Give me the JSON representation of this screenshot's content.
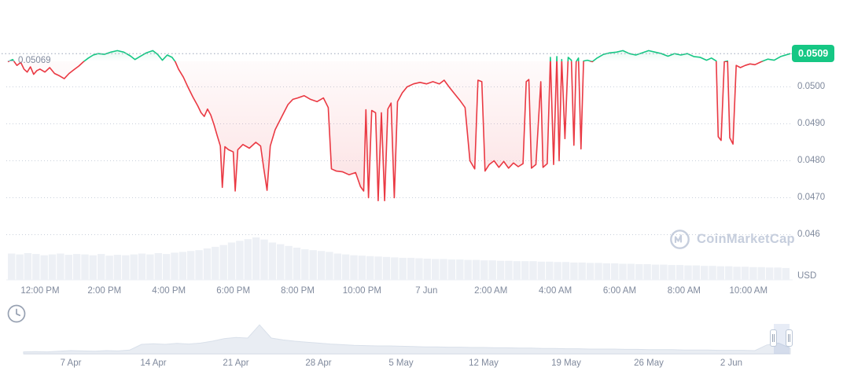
{
  "colors": {
    "green": "#16c784",
    "red": "#ea3943",
    "axis_label": "#808a9d",
    "grid_dot": "#c9d0db",
    "threshold_line": "#9aa5b8",
    "volume_bar": "#edf0f5",
    "nav_fill": "#e9edf3",
    "nav_line": "#d9e0ea",
    "nav_selection": "rgba(94,130,196,0.15)",
    "watermark": "#c6cedd"
  },
  "price_tag": {
    "value": "0.0509"
  },
  "open_price_label": {
    "value": "0.05069"
  },
  "watermark": {
    "text": "CoinMarketCap"
  },
  "chart_data": [
    {
      "type": "line",
      "name": "price-main-chart",
      "title": "",
      "x_unit": "hours from 12:00 PM Jun 6 (12.0 = midnight, tick '7 Jun')",
      "t_range": [
        -1.0,
        23.3
      ],
      "ylim": [
        0.046,
        0.0512
      ],
      "threshold_price": 0.05069,
      "last_price": 0.0509,
      "y_axis_currency": "USD",
      "y_ticks": [
        {
          "price": 0.05,
          "label": "0.0500"
        },
        {
          "price": 0.049,
          "label": "0.0490"
        },
        {
          "price": 0.048,
          "label": "0.0480"
        },
        {
          "price": 0.047,
          "label": "0.0470"
        },
        {
          "price": 0.046,
          "label": "0.046"
        }
      ],
      "x_ticks": [
        {
          "t": 0,
          "label": "12:00 PM"
        },
        {
          "t": 2,
          "label": "2:00 PM"
        },
        {
          "t": 4,
          "label": "4:00 PM"
        },
        {
          "t": 6,
          "label": "6:00 PM"
        },
        {
          "t": 8,
          "label": "8:00 PM"
        },
        {
          "t": 10,
          "label": "10:00 PM"
        },
        {
          "t": 12,
          "label": "7 Jun"
        },
        {
          "t": 14,
          "label": "2:00 AM"
        },
        {
          "t": 16,
          "label": "4:00 AM"
        },
        {
          "t": 18,
          "label": "6:00 AM"
        },
        {
          "t": 20,
          "label": "8:00 AM"
        },
        {
          "t": 22,
          "label": "10:00 AM"
        }
      ],
      "series": [
        {
          "name": "USD price",
          "points": [
            [
              -1.0,
              0.05068
            ],
            [
              -0.85,
              0.05074
            ],
            [
              -0.72,
              0.05058
            ],
            [
              -0.6,
              0.05066
            ],
            [
              -0.5,
              0.05048
            ],
            [
              -0.4,
              0.0504
            ],
            [
              -0.3,
              0.05054
            ],
            [
              -0.2,
              0.05034
            ],
            [
              -0.1,
              0.05044
            ],
            [
              0.0,
              0.05048
            ],
            [
              0.15,
              0.0504
            ],
            [
              0.3,
              0.05052
            ],
            [
              0.45,
              0.05036
            ],
            [
              0.6,
              0.0503
            ],
            [
              0.75,
              0.05022
            ],
            [
              0.9,
              0.05036
            ],
            [
              1.05,
              0.05046
            ],
            [
              1.2,
              0.05056
            ],
            [
              1.35,
              0.05068
            ],
            [
              1.5,
              0.05078
            ],
            [
              1.65,
              0.05086
            ],
            [
              1.8,
              0.0509
            ],
            [
              2.0,
              0.05088
            ],
            [
              2.2,
              0.05094
            ],
            [
              2.4,
              0.05098
            ],
            [
              2.6,
              0.05094
            ],
            [
              2.8,
              0.05084
            ],
            [
              2.95,
              0.05074
            ],
            [
              3.1,
              0.05082
            ],
            [
              3.3,
              0.05092
            ],
            [
              3.5,
              0.05098
            ],
            [
              3.65,
              0.05088
            ],
            [
              3.8,
              0.05072
            ],
            [
              3.95,
              0.05086
            ],
            [
              4.1,
              0.0508
            ],
            [
              4.2,
              0.05068
            ],
            [
              4.3,
              0.05048
            ],
            [
              4.45,
              0.05026
            ],
            [
              4.6,
              0.04998
            ],
            [
              4.75,
              0.04972
            ],
            [
              4.9,
              0.04948
            ],
            [
              5.0,
              0.0493
            ],
            [
              5.1,
              0.0492
            ],
            [
              5.2,
              0.0494
            ],
            [
              5.3,
              0.04924
            ],
            [
              5.4,
              0.04898
            ],
            [
              5.5,
              0.04868
            ],
            [
              5.6,
              0.0484
            ],
            [
              5.66,
              0.04728
            ],
            [
              5.74,
              0.04838
            ],
            [
              5.85,
              0.0483
            ],
            [
              6.0,
              0.04824
            ],
            [
              6.06,
              0.04718
            ],
            [
              6.14,
              0.0483
            ],
            [
              6.3,
              0.04844
            ],
            [
              6.5,
              0.04834
            ],
            [
              6.7,
              0.0485
            ],
            [
              6.85,
              0.0484
            ],
            [
              6.95,
              0.04778
            ],
            [
              7.05,
              0.0472
            ],
            [
              7.15,
              0.0484
            ],
            [
              7.3,
              0.04884
            ],
            [
              7.5,
              0.04918
            ],
            [
              7.7,
              0.04952
            ],
            [
              7.85,
              0.04966
            ],
            [
              8.0,
              0.0497
            ],
            [
              8.2,
              0.04976
            ],
            [
              8.4,
              0.04966
            ],
            [
              8.6,
              0.0496
            ],
            [
              8.8,
              0.0497
            ],
            [
              8.95,
              0.04944
            ],
            [
              9.05,
              0.04778
            ],
            [
              9.2,
              0.04772
            ],
            [
              9.4,
              0.0477
            ],
            [
              9.6,
              0.04762
            ],
            [
              9.8,
              0.04768
            ],
            [
              9.95,
              0.0473
            ],
            [
              10.05,
              0.04718
            ],
            [
              10.12,
              0.04938
            ],
            [
              10.2,
              0.047
            ],
            [
              10.3,
              0.04936
            ],
            [
              10.42,
              0.0493
            ],
            [
              10.5,
              0.04692
            ],
            [
              10.6,
              0.0493
            ],
            [
              10.7,
              0.04692
            ],
            [
              10.8,
              0.0494
            ],
            [
              10.9,
              0.04956
            ],
            [
              11.0,
              0.047
            ],
            [
              11.1,
              0.0496
            ],
            [
              11.25,
              0.04984
            ],
            [
              11.4,
              0.05
            ],
            [
              11.6,
              0.05008
            ],
            [
              11.8,
              0.05012
            ],
            [
              12.0,
              0.05008
            ],
            [
              12.2,
              0.05014
            ],
            [
              12.4,
              0.05008
            ],
            [
              12.55,
              0.05018
            ],
            [
              12.7,
              0.05
            ],
            [
              12.9,
              0.04978
            ],
            [
              13.05,
              0.04962
            ],
            [
              13.2,
              0.04944
            ],
            [
              13.35,
              0.048
            ],
            [
              13.5,
              0.04778
            ],
            [
              13.6,
              0.05018
            ],
            [
              13.72,
              0.05014
            ],
            [
              13.82,
              0.04772
            ],
            [
              13.95,
              0.0479
            ],
            [
              14.1,
              0.048
            ],
            [
              14.25,
              0.04782
            ],
            [
              14.4,
              0.04798
            ],
            [
              14.55,
              0.0478
            ],
            [
              14.7,
              0.04794
            ],
            [
              14.85,
              0.04784
            ],
            [
              15.0,
              0.04792
            ],
            [
              15.1,
              0.05014
            ],
            [
              15.18,
              0.0502
            ],
            [
              15.26,
              0.0478
            ],
            [
              15.4,
              0.0479
            ],
            [
              15.55,
              0.05014
            ],
            [
              15.62,
              0.04782
            ],
            [
              15.75,
              0.04792
            ],
            [
              15.85,
              0.0508
            ],
            [
              15.95,
              0.0479
            ],
            [
              16.05,
              0.05082
            ],
            [
              16.12,
              0.048
            ],
            [
              16.2,
              0.05074
            ],
            [
              16.3,
              0.0486
            ],
            [
              16.4,
              0.0508
            ],
            [
              16.5,
              0.05072
            ],
            [
              16.58,
              0.04842
            ],
            [
              16.65,
              0.05068
            ],
            [
              16.72,
              0.05078
            ],
            [
              16.8,
              0.04832
            ],
            [
              16.88,
              0.0507
            ],
            [
              17.0,
              0.05072
            ],
            [
              17.15,
              0.05068
            ],
            [
              17.3,
              0.05078
            ],
            [
              17.5,
              0.05088
            ],
            [
              17.7,
              0.05092
            ],
            [
              17.9,
              0.05094
            ],
            [
              18.1,
              0.05098
            ],
            [
              18.3,
              0.0509
            ],
            [
              18.5,
              0.05086
            ],
            [
              18.7,
              0.05092
            ],
            [
              18.9,
              0.05098
            ],
            [
              19.1,
              0.05094
            ],
            [
              19.3,
              0.0509
            ],
            [
              19.5,
              0.05083
            ],
            [
              19.7,
              0.0509
            ],
            [
              19.9,
              0.05086
            ],
            [
              20.1,
              0.0509
            ],
            [
              20.3,
              0.05082
            ],
            [
              20.5,
              0.0508
            ],
            [
              20.7,
              0.05072
            ],
            [
              20.85,
              0.05078
            ],
            [
              21.0,
              0.0507
            ],
            [
              21.06,
              0.04865
            ],
            [
              21.15,
              0.04855
            ],
            [
              21.25,
              0.05068
            ],
            [
              21.35,
              0.0507
            ],
            [
              21.42,
              0.04862
            ],
            [
              21.52,
              0.04845
            ],
            [
              21.62,
              0.05058
            ],
            [
              21.75,
              0.05052
            ],
            [
              21.9,
              0.05058
            ],
            [
              22.05,
              0.05062
            ],
            [
              22.2,
              0.0506
            ],
            [
              22.4,
              0.05068
            ],
            [
              22.6,
              0.05075
            ],
            [
              22.8,
              0.05072
            ],
            [
              23.0,
              0.05082
            ],
            [
              23.3,
              0.0509
            ]
          ]
        }
      ],
      "volume_rel": [
        0.62,
        0.6,
        0.63,
        0.61,
        0.58,
        0.6,
        0.62,
        0.59,
        0.61,
        0.6,
        0.58,
        0.61,
        0.57,
        0.59,
        0.58,
        0.6,
        0.62,
        0.6,
        0.63,
        0.61,
        0.64,
        0.66,
        0.68,
        0.7,
        0.74,
        0.78,
        0.82,
        0.88,
        0.92,
        0.96,
        1.0,
        0.95,
        0.88,
        0.84,
        0.8,
        0.76,
        0.72,
        0.7,
        0.68,
        0.66,
        0.62,
        0.6,
        0.58,
        0.57,
        0.56,
        0.55,
        0.54,
        0.53,
        0.52,
        0.52,
        0.51,
        0.5,
        0.49,
        0.49,
        0.48,
        0.48,
        0.47,
        0.47,
        0.46,
        0.46,
        0.45,
        0.45,
        0.44,
        0.44,
        0.44,
        0.43,
        0.43,
        0.42,
        0.42,
        0.41,
        0.41,
        0.4,
        0.4,
        0.39,
        0.39,
        0.38,
        0.38,
        0.37,
        0.37,
        0.36,
        0.36,
        0.35,
        0.35,
        0.34,
        0.34,
        0.33,
        0.33,
        0.32,
        0.32,
        0.31,
        0.31,
        0.3,
        0.3,
        0.29,
        0.29,
        0.28
      ]
    },
    {
      "type": "area",
      "name": "navigator-mini-chart",
      "range_days": 65,
      "x_ticks": [
        {
          "day": 4,
          "label": "7 Apr"
        },
        {
          "day": 11,
          "label": "14 Apr"
        },
        {
          "day": 18,
          "label": "21 Apr"
        },
        {
          "day": 25,
          "label": "28 Apr"
        },
        {
          "day": 32,
          "label": "5 May"
        },
        {
          "day": 39,
          "label": "12 May"
        },
        {
          "day": 46,
          "label": "19 May"
        },
        {
          "day": 53,
          "label": "26 May"
        },
        {
          "day": 60,
          "label": "2 Jun"
        }
      ],
      "values": [
        0.06,
        0.07,
        0.06,
        0.08,
        0.1,
        0.09,
        0.08,
        0.1,
        0.09,
        0.12,
        0.3,
        0.32,
        0.3,
        0.33,
        0.31,
        0.34,
        0.4,
        0.48,
        0.52,
        0.5,
        0.92,
        0.5,
        0.44,
        0.4,
        0.37,
        0.34,
        0.31,
        0.29,
        0.27,
        0.26,
        0.25,
        0.25,
        0.24,
        0.23,
        0.22,
        0.22,
        0.21,
        0.21,
        0.2,
        0.2,
        0.19,
        0.19,
        0.18,
        0.18,
        0.17,
        0.17,
        0.16,
        0.16,
        0.15,
        0.15,
        0.15,
        0.14,
        0.14,
        0.13,
        0.13,
        0.13,
        0.12,
        0.12,
        0.12,
        0.11,
        0.11,
        0.11,
        0.1,
        0.28,
        0.34,
        0.18
      ]
    }
  ]
}
